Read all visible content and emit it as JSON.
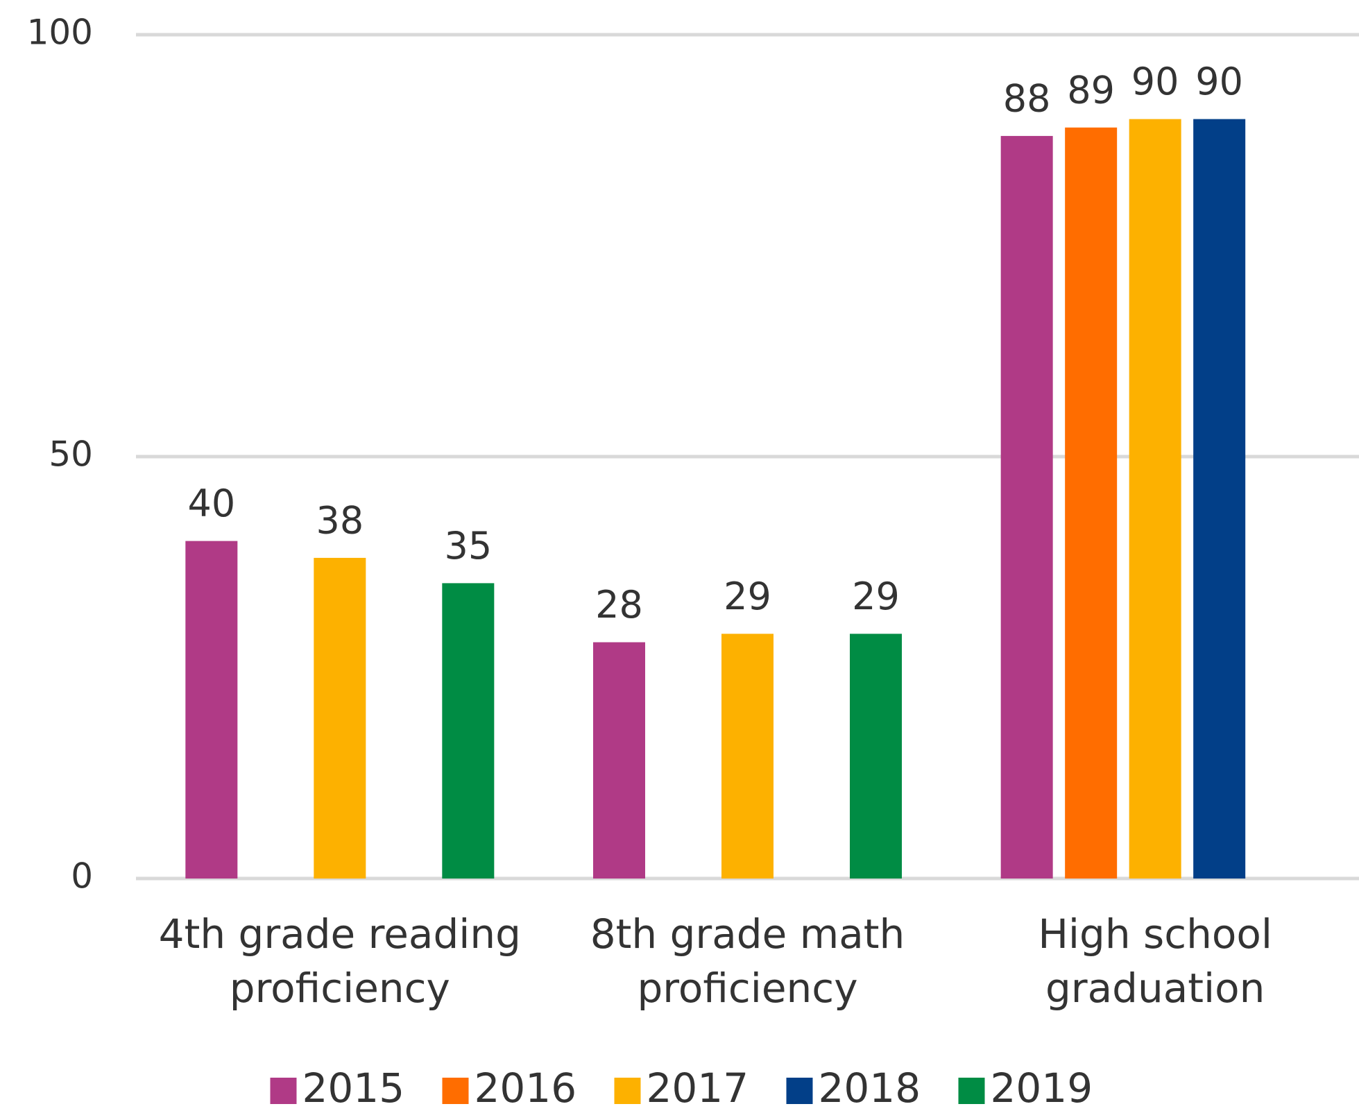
{
  "chart_data": {
    "type": "bar",
    "categories": [
      "4th grade reading proficiency",
      "8th grade math proficiency",
      "High school graduation"
    ],
    "series": [
      {
        "name": "2015",
        "color": "#b03a86",
        "values": [
          40,
          28,
          88
        ]
      },
      {
        "name": "2016",
        "color": "#ff6d00",
        "values": [
          null,
          null,
          89
        ]
      },
      {
        "name": "2017",
        "color": "#fdb100",
        "values": [
          38,
          29,
          90
        ]
      },
      {
        "name": "2018",
        "color": "#023f88",
        "values": [
          null,
          null,
          90
        ]
      },
      {
        "name": "2019",
        "color": "#008c44",
        "values": [
          35,
          29,
          null
        ]
      }
    ],
    "ylim": [
      0,
      100
    ],
    "yticks": [
      0,
      50,
      100
    ],
    "grid": true,
    "legend": "bottom"
  }
}
